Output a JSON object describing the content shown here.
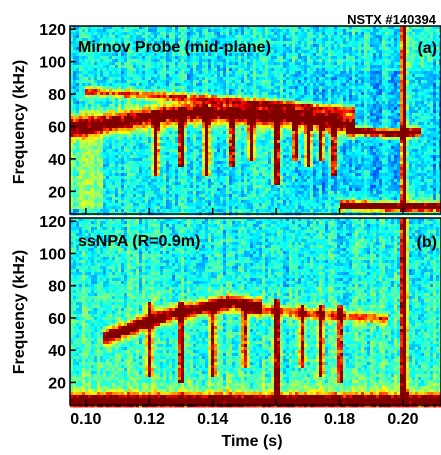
{
  "chart_data": [
    {
      "type": "heatmap",
      "panel": "a",
      "shot_label": "NSTX #140394",
      "title": "Mirnov Probe (mid-plane)",
      "panel_label": "(a)",
      "ylabel": "Frequency (kHz)",
      "xlabel": "",
      "xlim": [
        0.095,
        0.212
      ],
      "ylim": [
        6,
        122
      ],
      "yticks": [
        20,
        40,
        60,
        80,
        100,
        120
      ],
      "colormap": "jet",
      "features": [
        {
          "kind": "band",
          "t": [
            0.095,
            0.11,
            0.12,
            0.135,
            0.15,
            0.165,
            0.178,
            0.185
          ],
          "f": [
            60,
            63,
            66,
            69,
            68,
            66,
            63,
            61
          ],
          "width_khz": 12,
          "strength": 0.8
        },
        {
          "kind": "band",
          "t": [
            0.1,
            0.13,
            0.16,
            0.185
          ],
          "f": [
            82,
            78,
            74,
            70
          ],
          "width_khz": 5,
          "strength": 0.5
        },
        {
          "kind": "band",
          "t": [
            0.182,
            0.195,
            0.205
          ],
          "f": [
            58,
            56,
            57
          ],
          "width_khz": 5,
          "strength": 0.95
        },
        {
          "kind": "band",
          "t": [
            0.18,
            0.195,
            0.212
          ],
          "f": [
            12,
            11,
            11
          ],
          "width_khz": 5,
          "strength": 0.95
        },
        {
          "kind": "chirp",
          "t": 0.122,
          "f_top": 70,
          "f_bot": 30,
          "strength": 0.85
        },
        {
          "kind": "chirp",
          "t": 0.13,
          "f_top": 72,
          "f_bot": 35,
          "strength": 0.85
        },
        {
          "kind": "chirp",
          "t": 0.138,
          "f_top": 72,
          "f_bot": 30,
          "strength": 0.9
        },
        {
          "kind": "chirp",
          "t": 0.146,
          "f_top": 72,
          "f_bot": 35,
          "strength": 0.85
        },
        {
          "kind": "chirp",
          "t": 0.152,
          "f_top": 72,
          "f_bot": 40,
          "strength": 0.8
        },
        {
          "kind": "chirp",
          "t": 0.16,
          "f_top": 74,
          "f_bot": 25,
          "strength": 0.95
        },
        {
          "kind": "chirp",
          "t": 0.166,
          "f_top": 70,
          "f_bot": 40,
          "strength": 0.8
        },
        {
          "kind": "chirp",
          "t": 0.17,
          "f_top": 70,
          "f_bot": 35,
          "strength": 0.85
        },
        {
          "kind": "chirp",
          "t": 0.174,
          "f_top": 68,
          "f_bot": 40,
          "strength": 0.8
        },
        {
          "kind": "chirp",
          "t": 0.178,
          "f_top": 68,
          "f_bot": 30,
          "strength": 0.85
        },
        {
          "kind": "chirp",
          "t": 0.2,
          "f_top": 122,
          "f_bot": 8,
          "strength": 0.95
        }
      ]
    },
    {
      "type": "heatmap",
      "panel": "b",
      "title": "ssNPA (R=0.9m)",
      "panel_label": "(b)",
      "ylabel": "Frequency (kHz)",
      "xlabel": "Time (s)",
      "xlim": [
        0.095,
        0.212
      ],
      "ylim": [
        6,
        122
      ],
      "xticks": [
        0.1,
        0.12,
        0.14,
        0.16,
        0.18,
        0.2
      ],
      "xticklabels": [
        "0.10",
        "0.12",
        "0.14",
        "0.16",
        "0.18",
        "0.20"
      ],
      "yticks": [
        20,
        40,
        60,
        80,
        100,
        120
      ],
      "colormap": "jet",
      "features": [
        {
          "kind": "band",
          "t": [
            0.105,
            0.115,
            0.125,
            0.135,
            0.145,
            0.155
          ],
          "f": [
            48,
            55,
            62,
            66,
            70,
            68
          ],
          "width_khz": 8,
          "strength": 0.85
        },
        {
          "kind": "band",
          "t": [
            0.15,
            0.165,
            0.18,
            0.195
          ],
          "f": [
            66,
            64,
            62,
            60
          ],
          "width_khz": 6,
          "strength": 0.45
        },
        {
          "kind": "band",
          "t": [
            0.095,
            0.212
          ],
          "f": [
            10,
            10
          ],
          "width_khz": 8,
          "strength": 0.75
        },
        {
          "kind": "chirp",
          "t": 0.12,
          "f_top": 70,
          "f_bot": 25,
          "strength": 0.6
        },
        {
          "kind": "chirp",
          "t": 0.13,
          "f_top": 70,
          "f_bot": 20,
          "strength": 0.7
        },
        {
          "kind": "chirp",
          "t": 0.14,
          "f_top": 70,
          "f_bot": 25,
          "strength": 0.65
        },
        {
          "kind": "chirp",
          "t": 0.15,
          "f_top": 70,
          "f_bot": 30,
          "strength": 0.6
        },
        {
          "kind": "chirp",
          "t": 0.16,
          "f_top": 72,
          "f_bot": 10,
          "strength": 0.85
        },
        {
          "kind": "chirp",
          "t": 0.168,
          "f_top": 68,
          "f_bot": 30,
          "strength": 0.6
        },
        {
          "kind": "chirp",
          "t": 0.174,
          "f_top": 68,
          "f_bot": 25,
          "strength": 0.6
        },
        {
          "kind": "chirp",
          "t": 0.18,
          "f_top": 68,
          "f_bot": 20,
          "strength": 0.7
        },
        {
          "kind": "chirp",
          "t": 0.2,
          "f_top": 122,
          "f_bot": 8,
          "strength": 0.95
        }
      ]
    }
  ]
}
